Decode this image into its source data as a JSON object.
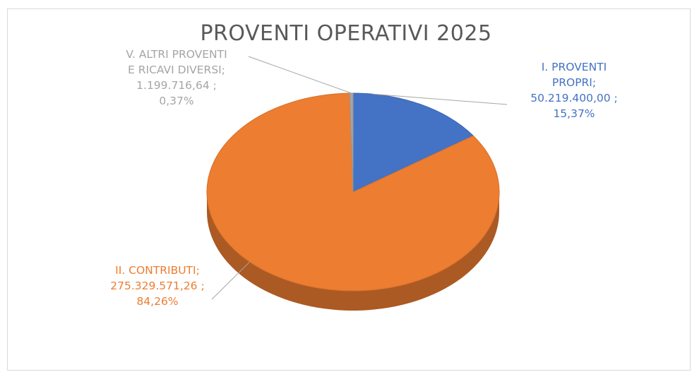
{
  "chart_data": {
    "type": "pie",
    "title": "PROVENTI OPERATIVI 2025",
    "slices": [
      {
        "category_line1": "I. PROVENTI",
        "category_line2": "PROPRI;",
        "value_text": "50.219.400,00 ;",
        "percent_text": "15,37%",
        "value": 50219400.0,
        "percent": 15.37,
        "color": "#4472C4"
      },
      {
        "category_line1": "II. CONTRIBUTI;",
        "category_line2": "",
        "value_text": "275.329.571,26 ;",
        "percent_text": "84,26%",
        "value": 275329571.26,
        "percent": 84.26,
        "color": "#ED7D31"
      },
      {
        "category_line1": "V. ALTRI PROVENTI",
        "category_line2": "E RICAVI DIVERSI;",
        "value_text": "1.199.716,64 ;",
        "percent_text": "0,37%",
        "value": 1199716.64,
        "percent": 0.37,
        "color": "#A5A5A5"
      }
    ],
    "legend": "none",
    "style": "3d-pie"
  }
}
